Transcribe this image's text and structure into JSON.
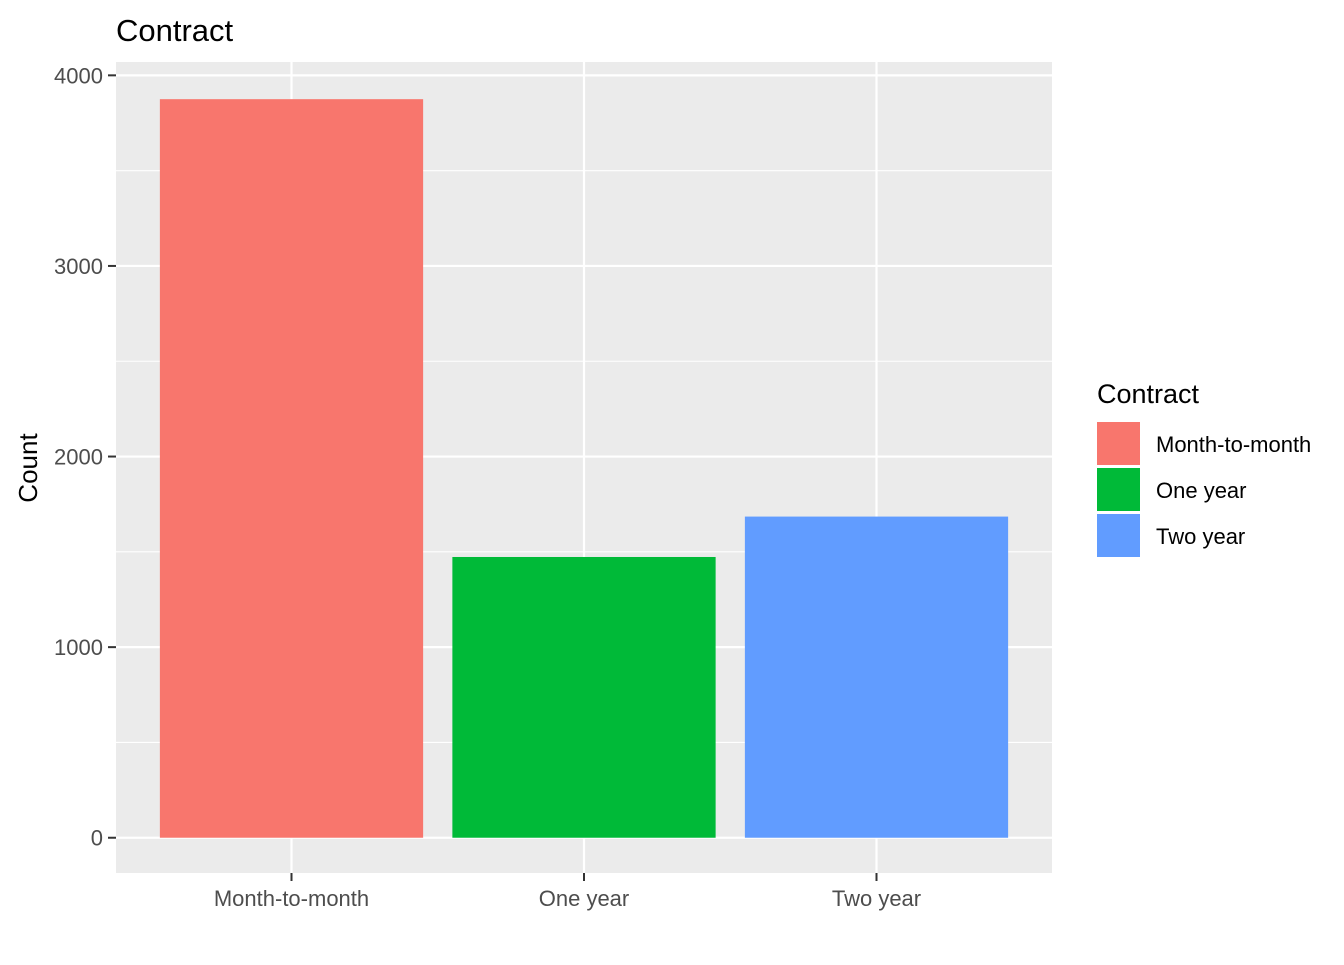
{
  "chart_data": {
    "type": "bar",
    "title": "Contract",
    "xlabel": "",
    "ylabel": "Count",
    "categories": [
      "Month-to-month",
      "One year",
      "Two year"
    ],
    "values": [
      3875,
      1473,
      1685
    ],
    "colors": [
      "#F8766D",
      "#00BA38",
      "#619CFF"
    ],
    "yticks": [
      0,
      1000,
      2000,
      3000,
      4000
    ],
    "ylim": [
      -185,
      4070
    ],
    "grid": true,
    "panel_background": "#EBEBEB",
    "legend": {
      "title": "Contract",
      "position": "right",
      "entries": [
        "Month-to-month",
        "One year",
        "Two year"
      ]
    }
  }
}
